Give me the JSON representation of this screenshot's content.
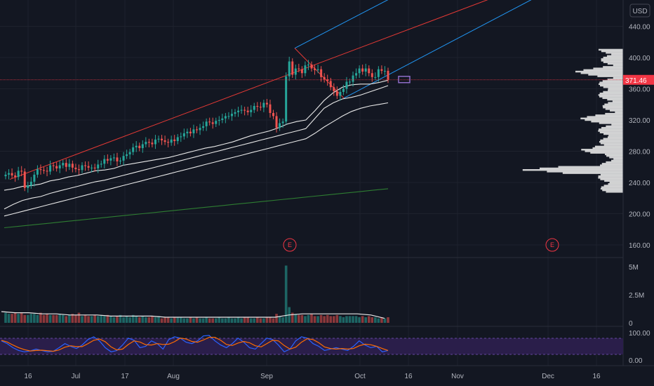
{
  "currency_label": "USD",
  "current_price_label": "371.46",
  "earnings_marker": "E",
  "colors": {
    "background": "#131722",
    "grid": "#1e222d",
    "up": "#26a69a",
    "down": "#ef5350",
    "ma": "#e8e8e8",
    "ma_long": "#2e7d32",
    "channel_mid": "#e53935",
    "channel_outer": "#2196f3",
    "stoch_k": "#2962ff",
    "stoch_d": "#ff6d00",
    "stoch_band": "#2a1e4a",
    "profile": "#e6e6e6",
    "price_line": "#f23645",
    "target_box": "#8e6cc7"
  },
  "price_axis": {
    "ticks": [
      "440.00",
      "400.00",
      "360.00",
      "320.00",
      "280.00",
      "240.00",
      "200.00",
      "160.00"
    ]
  },
  "volume_axis": {
    "ticks": [
      "5M",
      "2.5M",
      "0"
    ]
  },
  "stoch_axis": {
    "ticks": [
      "100.00",
      "0.00"
    ]
  },
  "time_axis": {
    "ticks": [
      "16",
      "Jul",
      "17",
      "Aug",
      "Sep",
      "Oct",
      "16",
      "Nov",
      "Dec",
      "16"
    ]
  },
  "chart_data": {
    "type": "candlestick",
    "ylim": [
      140,
      460
    ],
    "last_price": 371.46,
    "earnings_events": [
      "Sep",
      "Nov"
    ],
    "closes": [
      250,
      252,
      249,
      247,
      255,
      254,
      233,
      236,
      241,
      250,
      257,
      256,
      255,
      254,
      262,
      261,
      258,
      262,
      265,
      260,
      264,
      259,
      257,
      256,
      262,
      261,
      259,
      259,
      258,
      263,
      264,
      270,
      268,
      271,
      272,
      267,
      268,
      274,
      276,
      279,
      285,
      287,
      284,
      289,
      292,
      291,
      289,
      295,
      296,
      294,
      292,
      291,
      295,
      293,
      298,
      299,
      303,
      305,
      303,
      308,
      307,
      310,
      312,
      318,
      317,
      315,
      319,
      320,
      322,
      325,
      325,
      328,
      330,
      332,
      333,
      332,
      330,
      333,
      338,
      337,
      336,
      342,
      340,
      329,
      325,
      310,
      316,
      318,
      376,
      395,
      378,
      386,
      385,
      380,
      390,
      391,
      386,
      384,
      385,
      375,
      372,
      370,
      362,
      357,
      351,
      356,
      360,
      369,
      369,
      377,
      380,
      386,
      382,
      386,
      380,
      375,
      375,
      385,
      383,
      383,
      371.46
    ],
    "volume_millions": [
      0.9,
      0.8,
      0.8,
      0.9,
      0.8,
      0.9,
      0.7,
      0.7,
      0.8,
      0.8,
      0.7,
      0.9,
      0.7,
      0.8,
      0.7,
      0.7,
      0.7,
      0.8,
      0.7,
      0.6,
      0.7,
      0.8,
      0.7,
      0.9,
      0.6,
      0.7,
      0.6,
      0.6,
      0.7,
      0.6,
      0.7,
      0.6,
      0.7,
      0.6,
      0.5,
      0.6,
      0.7,
      0.5,
      0.6,
      0.5,
      0.7,
      0.6,
      0.5,
      0.6,
      0.5,
      0.5,
      0.6,
      0.5,
      0.6,
      0.4,
      0.5,
      0.5,
      0.4,
      0.5,
      0.5,
      0.5,
      0.4,
      0.4,
      0.5,
      0.4,
      0.5,
      0.4,
      0.4,
      0.5,
      0.4,
      0.4,
      0.4,
      0.5,
      0.4,
      0.4,
      0.5,
      0.4,
      0.4,
      0.5,
      0.4,
      0.5,
      0.5,
      0.4,
      0.4,
      0.5,
      0.4,
      0.4,
      0.5,
      0.5,
      0.4,
      0.8,
      0.6,
      0.5,
      5.1,
      1.4,
      0.9,
      0.8,
      0.7,
      0.7,
      0.6,
      0.7,
      0.8,
      0.6,
      0.6,
      0.7,
      0.6,
      0.7,
      0.6,
      0.6,
      0.7,
      0.6,
      0.5,
      0.6,
      0.6,
      0.6,
      0.6,
      0.5,
      0.6,
      0.5,
      0.6,
      0.5,
      0.5,
      0.4,
      0.5,
      0.4,
      0.5
    ],
    "moving_averages": [
      {
        "values": [
          230,
          232,
          235,
          236,
          238,
          242,
          244,
          247,
          249,
          252,
          255,
          256,
          258,
          262,
          264,
          266,
          268,
          270,
          272,
          275,
          278,
          281,
          284,
          286,
          289,
          292,
          296,
          300,
          303,
          306,
          310,
          315,
          318,
          320,
          332,
          345,
          355,
          362,
          365,
          366,
          366,
          368,
          371
        ]
      },
      {
        "values": [
          206,
          212,
          217,
          220,
          222,
          226,
          229,
          232,
          235,
          238,
          241,
          243,
          246,
          249,
          252,
          255,
          258,
          261,
          264,
          267,
          270,
          273,
          276,
          279,
          282,
          285,
          288,
          291,
          294,
          297,
          300,
          303,
          306,
          309,
          322,
          335,
          342,
          347,
          349,
          352,
          356,
          360,
          364
        ]
      },
      {
        "values": [
          197,
          200,
          203,
          206,
          209,
          212,
          215,
          218,
          221,
          224,
          227,
          230,
          233,
          236,
          239,
          242,
          245,
          248,
          251,
          254,
          257,
          260,
          263,
          266,
          269,
          272,
          275,
          278,
          281,
          284,
          287,
          290,
          293,
          296,
          303,
          311,
          318,
          325,
          331,
          335,
          338,
          340,
          342
        ]
      },
      {
        "values": [
          182,
          184,
          186,
          188,
          190,
          192,
          194,
          196,
          198,
          200,
          202,
          204,
          206,
          208,
          210,
          212,
          214,
          216,
          218,
          220,
          222,
          224,
          226,
          228,
          230,
          232
        ]
      }
    ],
    "volume_ma_millions": [
      1.0,
      0.9,
      0.9,
      0.8,
      0.8,
      0.7,
      0.7,
      0.7,
      0.6,
      0.6,
      0.6,
      0.6,
      0.5,
      0.5,
      0.5,
      0.5,
      0.5,
      0.5,
      0.5,
      0.5,
      0.5,
      0.7,
      0.8,
      0.8,
      0.8,
      0.8,
      0.8,
      0.7,
      0.4
    ],
    "stoch_k": [
      70,
      60,
      45,
      35,
      30,
      33,
      40,
      35,
      30,
      32,
      45,
      60,
      50,
      42,
      55,
      75,
      85,
      70,
      45,
      30,
      35,
      55,
      80,
      72,
      45,
      50,
      70,
      60,
      40,
      75,
      85,
      80,
      65,
      60,
      70,
      88,
      90,
      70,
      55,
      45,
      60,
      80,
      65,
      45,
      40,
      60,
      80,
      75,
      55,
      30,
      40,
      70,
      85,
      80,
      60,
      50,
      35,
      40,
      45,
      40,
      35,
      50,
      70,
      55,
      45,
      50,
      30,
      35
    ],
    "stoch_d": [
      72,
      66,
      55,
      45,
      38,
      33,
      35,
      36,
      34,
      32,
      37,
      47,
      52,
      49,
      49,
      60,
      72,
      77,
      67,
      48,
      37,
      40,
      57,
      70,
      66,
      56,
      55,
      60,
      57,
      58,
      67,
      80,
      77,
      68,
      65,
      73,
      83,
      83,
      72,
      57,
      53,
      62,
      68,
      63,
      52,
      48,
      60,
      72,
      70,
      53,
      40,
      47,
      65,
      78,
      75,
      63,
      48,
      42,
      40,
      42,
      40,
      42,
      52,
      58,
      56,
      50,
      42,
      35
    ]
  }
}
